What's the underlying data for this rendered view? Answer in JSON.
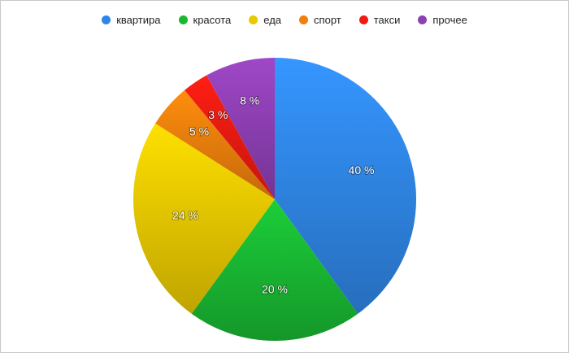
{
  "chart_data": {
    "type": "pie",
    "series": [
      {
        "name": "квартира",
        "value": 40,
        "label": "40 %",
        "color": "#2f86e6"
      },
      {
        "name": "красота",
        "value": 20,
        "label": "20 %",
        "color": "#19b833"
      },
      {
        "name": "еда",
        "value": 24,
        "label": "24 %",
        "color": "#e9c800"
      },
      {
        "name": "спорт",
        "value": 5,
        "label": "5 %",
        "color": "#f07f0c"
      },
      {
        "name": "такси",
        "value": 3,
        "label": "3 %",
        "color": "#ef1b12"
      },
      {
        "name": "прочее",
        "value": 8,
        "label": "8 %",
        "color": "#8e3fb3"
      }
    ],
    "legend_position": "top-center"
  }
}
